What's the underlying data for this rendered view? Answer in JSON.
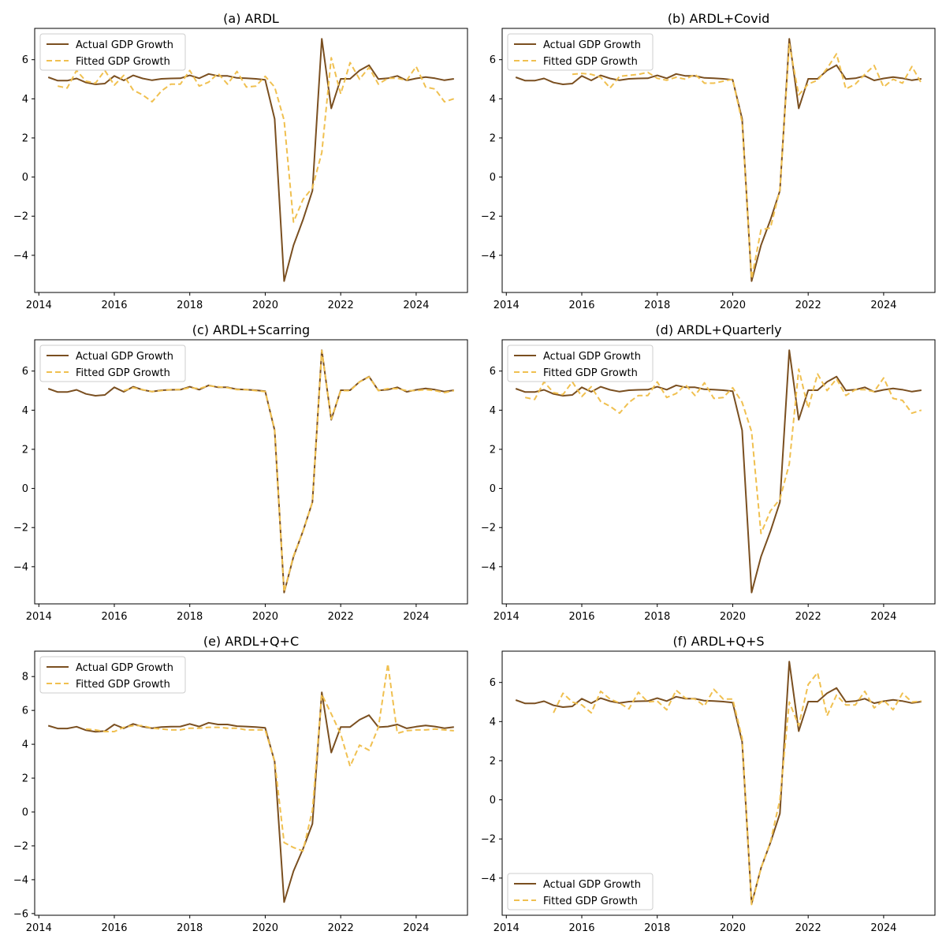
{
  "legend_labels": {
    "actual": "Actual GDP Growth",
    "fitted": "Fitted GDP Growth"
  },
  "colors": {
    "actual": "#7a4f20",
    "fitted": "#f0c050"
  },
  "x_ticks": [
    2014,
    2016,
    2018,
    2020,
    2022,
    2024
  ],
  "actual_series": [
    5.1,
    4.93,
    4.93,
    5.04,
    4.83,
    4.74,
    4.78,
    5.17,
    4.94,
    5.2,
    5.04,
    4.95,
    5.02,
    5.04,
    5.05,
    5.2,
    5.05,
    5.27,
    5.17,
    5.17,
    5.07,
    5.05,
    5.02,
    4.97,
    2.97,
    -5.32,
    -3.49,
    -2.19,
    -0.7,
    7.07,
    3.51,
    5.02,
    5.02,
    5.45,
    5.72,
    5.01,
    5.05,
    5.17,
    4.94,
    5.04,
    5.11,
    5.05,
    4.95,
    5.02
  ],
  "chart_data": [
    {
      "type": "line",
      "title": "(a) ARDL",
      "x": [
        "2014Q2",
        "2014Q3",
        "2014Q4",
        "2015Q1",
        "2015Q2",
        "2015Q3",
        "2015Q4",
        "2016Q1",
        "2016Q2",
        "2016Q3",
        "2016Q4",
        "2017Q1",
        "2017Q2",
        "2017Q3",
        "2017Q4",
        "2018Q1",
        "2018Q2",
        "2018Q3",
        "2018Q4",
        "2019Q1",
        "2019Q2",
        "2019Q3",
        "2019Q4",
        "2020Q1",
        "2020Q2",
        "2020Q3",
        "2020Q4",
        "2021Q1",
        "2021Q2",
        "2021Q3",
        "2021Q4",
        "2022Q1",
        "2022Q2",
        "2022Q3",
        "2022Q4",
        "2023Q1",
        "2023Q2",
        "2023Q3",
        "2023Q4",
        "2024Q1",
        "2024Q2",
        "2024Q3",
        "2024Q4",
        "2025Q1"
      ],
      "ylim": [
        -5.9,
        7.6
      ],
      "yticks": [
        -4,
        -2,
        0,
        2,
        4,
        6
      ],
      "legend": "upper left",
      "series": [
        {
          "name": "Actual GDP Growth",
          "values": "actual_series"
        },
        {
          "name": "Fitted GDP Growth",
          "values": [
            null,
            4.65,
            4.55,
            5.45,
            4.9,
            4.8,
            5.45,
            4.7,
            5.2,
            4.45,
            4.2,
            3.85,
            4.4,
            4.75,
            4.75,
            5.45,
            4.65,
            4.85,
            5.3,
            4.75,
            5.4,
            4.6,
            4.65,
            5.15,
            4.6,
            2.9,
            -2.3,
            -1.15,
            -0.55,
            1.25,
            6.1,
            4.25,
            5.85,
            5.0,
            5.6,
            4.75,
            5.05,
            5.05,
            4.95,
            5.65,
            4.6,
            4.5,
            3.85,
            4.0
          ]
        }
      ]
    },
    {
      "type": "line",
      "title": "(b) ARDL+Covid",
      "x": "same",
      "ylim": [
        -5.9,
        7.6
      ],
      "yticks": [
        -4,
        -2,
        0,
        2,
        4,
        6
      ],
      "legend": "upper left",
      "series": [
        {
          "name": "Actual GDP Growth",
          "values": "actual_series"
        },
        {
          "name": "Fitted GDP Growth",
          "values": [
            null,
            null,
            null,
            null,
            null,
            null,
            5.25,
            5.3,
            5.25,
            5.1,
            4.55,
            5.15,
            5.2,
            5.25,
            5.35,
            5.05,
            4.95,
            5.1,
            5.0,
            5.25,
            4.8,
            4.8,
            4.9,
            5.0,
            2.8,
            -5.2,
            -2.7,
            -2.6,
            -0.65,
            6.8,
            4.2,
            4.75,
            4.95,
            5.55,
            6.3,
            4.5,
            4.75,
            5.25,
            5.7,
            4.6,
            5.0,
            4.8,
            5.65,
            4.8
          ]
        }
      ]
    },
    {
      "type": "line",
      "title": "(c) ARDL+Scarring",
      "x": "same",
      "ylim": [
        -5.9,
        7.6
      ],
      "yticks": [
        -4,
        -2,
        0,
        2,
        4,
        6
      ],
      "legend": "upper left",
      "series": [
        {
          "name": "Actual GDP Growth",
          "values": "actual_series"
        },
        {
          "name": "Fitted GDP Growth",
          "values": [
            null,
            null,
            null,
            null,
            null,
            null,
            null,
            null,
            5.0,
            5.15,
            5.05,
            4.95,
            5.0,
            5.05,
            5.05,
            5.15,
            5.1,
            5.25,
            5.2,
            5.15,
            5.05,
            5.05,
            5.0,
            4.95,
            3.0,
            -5.3,
            -3.45,
            -2.2,
            -0.7,
            7.05,
            3.55,
            5.0,
            5.0,
            5.45,
            5.7,
            5.0,
            5.1,
            5.1,
            5.0,
            5.0,
            5.05,
            5.0,
            4.9,
            5.0
          ]
        }
      ]
    },
    {
      "type": "line",
      "title": "(d) ARDL+Quarterly",
      "x": "same",
      "ylim": [
        -5.9,
        7.6
      ],
      "yticks": [
        -4,
        -2,
        0,
        2,
        4,
        6
      ],
      "legend": "upper left",
      "series": [
        {
          "name": "Actual GDP Growth",
          "values": "actual_series"
        },
        {
          "name": "Fitted GDP Growth",
          "values": [
            null,
            4.65,
            4.55,
            5.45,
            4.9,
            4.8,
            5.45,
            4.7,
            5.2,
            4.45,
            4.2,
            3.85,
            4.4,
            4.75,
            4.75,
            5.45,
            4.65,
            4.85,
            5.3,
            4.75,
            5.4,
            4.6,
            4.65,
            5.15,
            4.4,
            2.9,
            -2.3,
            -1.15,
            -0.55,
            1.25,
            6.1,
            4.1,
            5.85,
            5.0,
            5.6,
            4.75,
            5.05,
            5.05,
            4.95,
            5.65,
            4.6,
            4.5,
            3.85,
            4.0
          ]
        }
      ]
    },
    {
      "type": "line",
      "title": "(e) ARDL+Q+C",
      "x": "same",
      "ylim": [
        -6.1,
        9.5
      ],
      "yticks": [
        -6,
        -4,
        -2,
        0,
        2,
        4,
        6,
        8
      ],
      "legend": "upper left",
      "series": [
        {
          "name": "Actual GDP Growth",
          "values": "actual_series"
        },
        {
          "name": "Fitted GDP Growth",
          "values": [
            null,
            null,
            null,
            null,
            4.9,
            4.85,
            4.75,
            4.75,
            5.0,
            5.1,
            5.1,
            4.95,
            4.9,
            4.85,
            4.85,
            4.95,
            4.95,
            5.0,
            5.0,
            4.95,
            4.95,
            4.85,
            4.85,
            4.85,
            3.0,
            -1.8,
            -2.1,
            -2.3,
            0.1,
            6.95,
            5.8,
            4.6,
            2.7,
            3.95,
            3.65,
            5.0,
            8.75,
            4.65,
            4.8,
            4.85,
            4.85,
            4.9,
            4.85,
            4.8
          ]
        }
      ]
    },
    {
      "type": "line",
      "title": "(f) ARDL+Q+S",
      "x": "same",
      "ylim": [
        -5.9,
        7.6
      ],
      "yticks": [
        -4,
        -2,
        0,
        2,
        4,
        6
      ],
      "legend": "lower left",
      "series": [
        {
          "name": "Actual GDP Growth",
          "values": "actual_series"
        },
        {
          "name": "Fitted GDP Growth",
          "values": [
            null,
            null,
            null,
            null,
            4.45,
            5.45,
            5.0,
            4.85,
            4.45,
            5.55,
            5.15,
            4.95,
            4.65,
            5.5,
            5.0,
            5.05,
            4.6,
            5.6,
            5.2,
            5.15,
            4.8,
            5.65,
            5.15,
            5.15,
            3.15,
            -5.35,
            -3.5,
            -2.15,
            0.0,
            5.0,
            3.8,
            5.9,
            6.5,
            4.3,
            5.35,
            4.85,
            4.85,
            5.55,
            4.7,
            5.1,
            4.6,
            5.45,
            5.0,
            5.05
          ]
        }
      ]
    }
  ]
}
